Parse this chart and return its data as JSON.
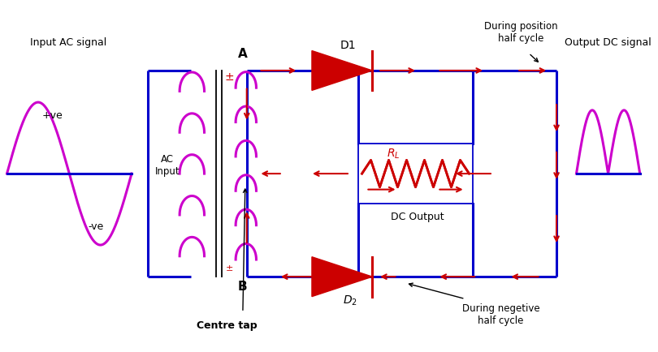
{
  "bg_color": "#ffffff",
  "blue": "#0000cc",
  "red": "#cc0000",
  "magenta": "#cc00cc",
  "black": "#000000",
  "fig_width": 8.1,
  "fig_height": 4.34,
  "labels": {
    "input_ac": "Input AC signal",
    "output_dc": "Output DC signal",
    "ac_input": "AC\nInput",
    "dc_output": "DC Output",
    "rl": "$R_L$",
    "d1": "D1",
    "d2": "$D_2$",
    "pos_half": "During position\nhalf cycle",
    "neg_half": "During negetive\nhalf cycle",
    "centre_tap": "Centre tap",
    "A": "A",
    "B": "B",
    "plus_ve": "+ve",
    "minus_ve": "-ve"
  }
}
